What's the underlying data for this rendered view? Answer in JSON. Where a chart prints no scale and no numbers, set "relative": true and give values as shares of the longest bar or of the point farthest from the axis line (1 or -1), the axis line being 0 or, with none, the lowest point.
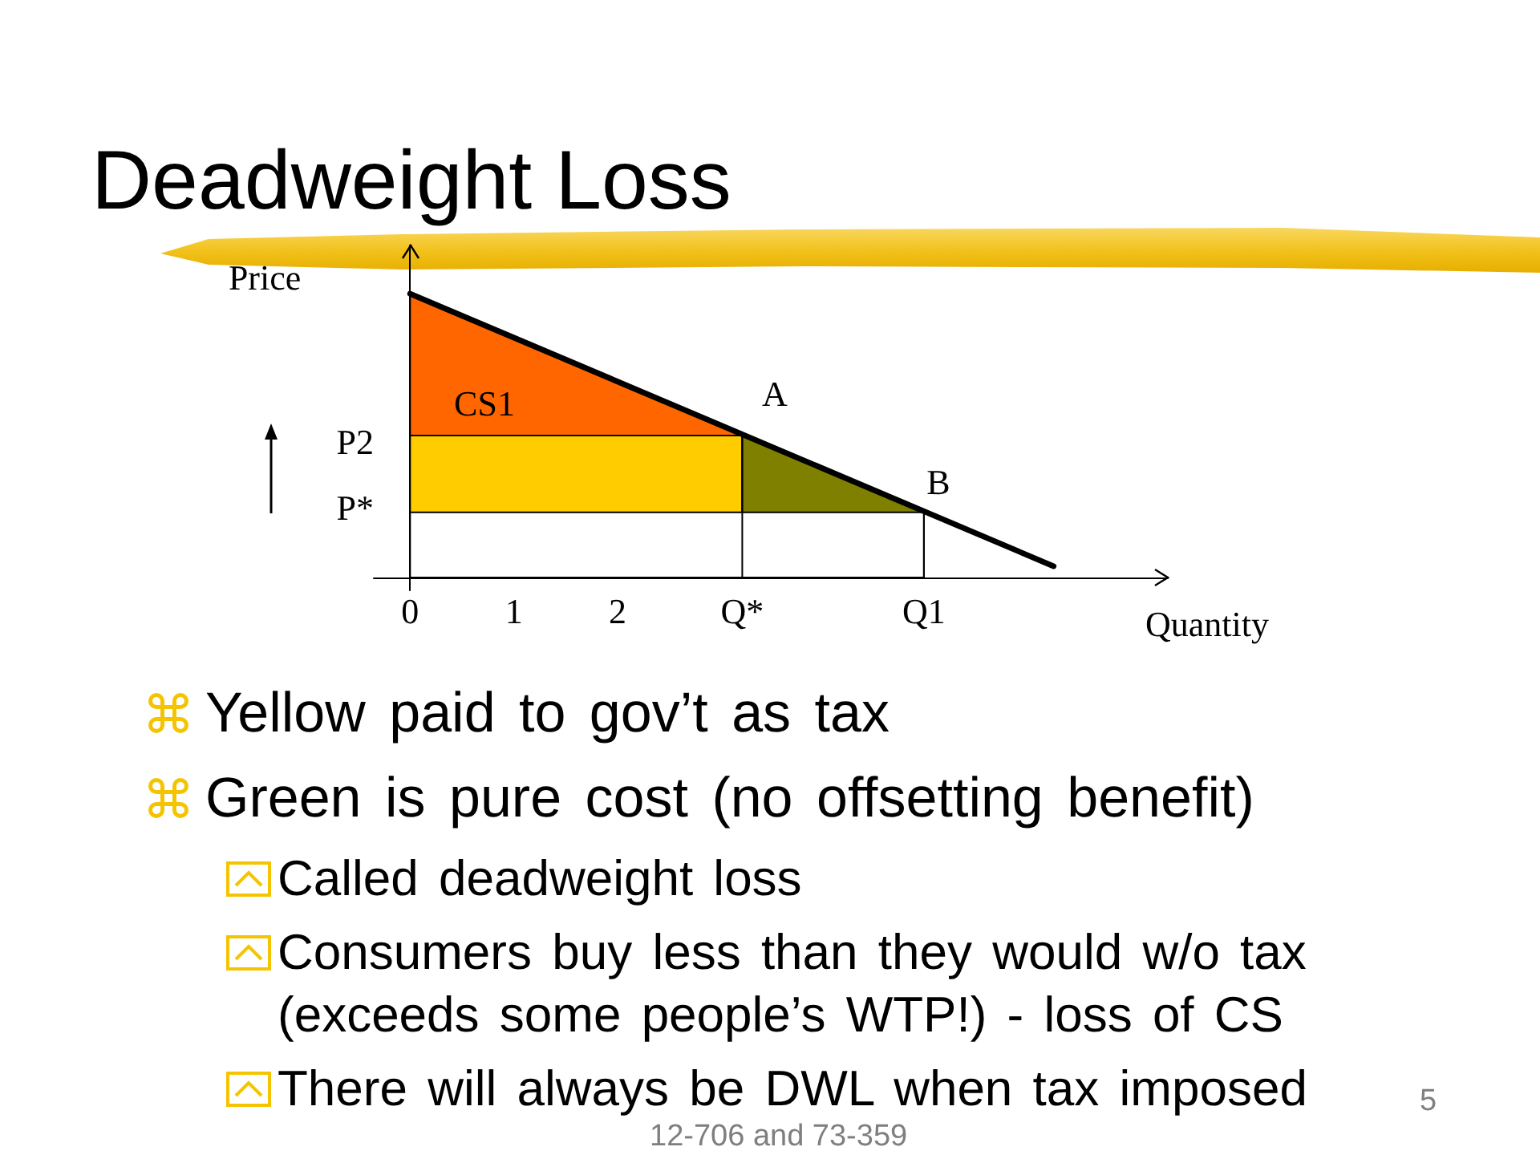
{
  "chart_data": {
    "type": "line",
    "title": "Deadweight Loss",
    "xlabel": "Quantity",
    "ylabel": "Price",
    "relative": true,
    "marker": "none",
    "xlim": [
      -0.35,
      7.3
    ],
    "xticks": [
      0,
      1,
      2,
      {
        "value": 3.2,
        "label": "Q*"
      },
      {
        "value": 4.95,
        "label": "Q1"
      }
    ],
    "series": [
      {
        "type": "area",
        "color": "#ff6600",
        "x": [
          0,
          3.2
        ],
        "values": [
          1,
          0.5
        ]
      },
      {
        "type": "area",
        "color": "#ffcc00",
        "x": [
          0,
          3.2
        ],
        "values": [
          0.5,
          0.5
        ]
      },
      {
        "type": "area",
        "color": "#808000",
        "x": [
          3.2,
          4.95
        ],
        "values": [
          0.5,
          0.23
        ]
      },
      {
        "type": "area",
        "color": "#ffffff",
        "x": [
          0,
          4.95
        ],
        "values": [
          0.23,
          0.23
        ]
      },
      {
        "type": "line",
        "color": "#000000",
        "x": [
          3.2,
          3.2
        ],
        "values": [
          0,
          0.5
        ]
      },
      {
        "type": "line",
        "color": "#000000",
        "x": [
          4.95,
          4.95
        ],
        "values": [
          0,
          0.23
        ]
      },
      {
        "type": "line",
        "color": "#000000",
        "x": [
          0,
          6.2
        ],
        "values": [
          1,
          0.04
        ]
      }
    ],
    "annotations": [
      "CS1",
      "A",
      "B",
      "P2",
      "P*",
      "Yellow paid to gov’t as tax",
      "Green is pure cost (no offsetting benefit)",
      "Called deadweight loss",
      "Consumers buy less than they would w/o tax (exceeds some people’s WTP!) - loss of CS",
      "There will always be DWL when tax imposed",
      "12-706 and 73-359",
      "5"
    ]
  }
}
